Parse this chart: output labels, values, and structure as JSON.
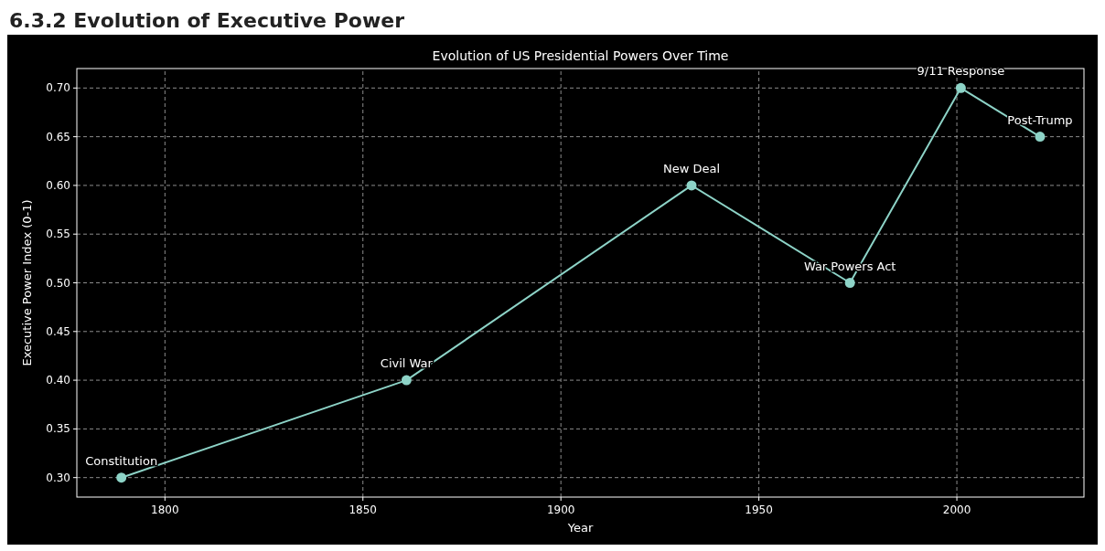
{
  "chart_data": {
    "type": "line",
    "title": "Evolution of US Presidential Powers Over Time",
    "xlabel": "Year",
    "ylabel": "Executive Power Index (0-1)",
    "x": [
      1789,
      1861,
      1933,
      1973,
      2001,
      2021
    ],
    "series": [
      {
        "color": "#8dd3c7",
        "values": [
          0.3,
          0.4,
          0.6,
          0.5,
          0.7,
          0.65
        ]
      }
    ],
    "xlim": [
      1777.75,
      2032.1
    ],
    "xticks": [
      1800,
      1850,
      1900,
      1950,
      2000
    ],
    "ylim": [
      0.28,
      0.72
    ],
    "yticks": [
      {
        "value": 0.3,
        "label": "0.30"
      },
      {
        "value": 0.35,
        "label": "0.35"
      },
      {
        "value": 0.4,
        "label": "0.40"
      },
      {
        "value": 0.45,
        "label": "0.45"
      },
      {
        "value": 0.5,
        "label": "0.50"
      },
      {
        "value": 0.55,
        "label": "0.55"
      },
      {
        "value": 0.6,
        "label": "0.60"
      },
      {
        "value": 0.65,
        "label": "0.65"
      },
      {
        "value": 0.7,
        "label": "0.70"
      }
    ],
    "grid": true,
    "marker": "circle",
    "line_style": "solid",
    "annotations": [
      "6.3.2 Evolution of Executive Power",
      {
        "text": "Constitution",
        "x": 1789,
        "y": 0.3
      },
      {
        "text": "Civil War",
        "x": 1861,
        "y": 0.4
      },
      {
        "text": "New Deal",
        "x": 1933,
        "y": 0.6
      },
      {
        "text": "War Powers Act",
        "x": 1973,
        "y": 0.5
      },
      {
        "text": "9/11 Response",
        "x": 2001,
        "y": 0.7
      },
      {
        "text": "Post-Trump",
        "x": 2021,
        "y": 0.65
      }
    ]
  }
}
